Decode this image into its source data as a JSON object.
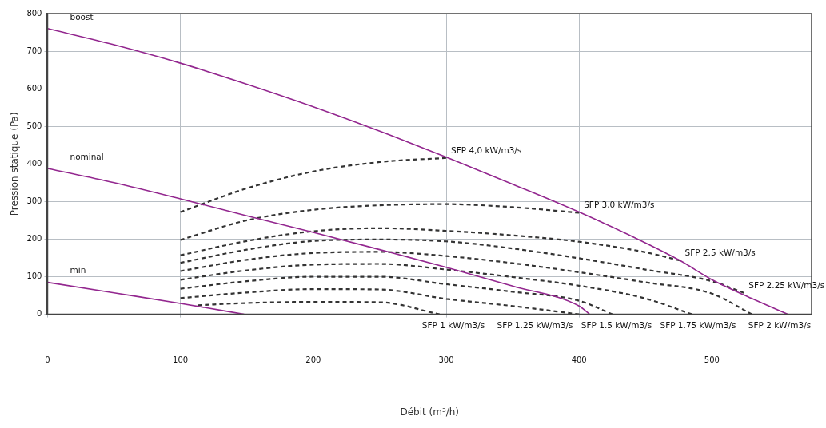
{
  "chart_data": {
    "type": "line",
    "xlabel": "Débit (m³/h)",
    "ylabel": "Pression statique (Pa)",
    "xlim": [
      0,
      575
    ],
    "ylim": [
      0,
      800
    ],
    "xticks": [
      0,
      100,
      200,
      300,
      400,
      500
    ],
    "yticks": [
      0,
      100,
      200,
      300,
      400,
      500,
      600,
      700,
      800
    ],
    "grid": true,
    "legend": false,
    "marker": "none",
    "series": [
      {
        "name": "boost",
        "color": "#93278f",
        "line_style": "solid",
        "x": [
          0,
          50,
          100,
          150,
          200,
          250,
          300,
          350,
          400,
          450,
          476,
          500,
          530,
          557
        ],
        "values": [
          760,
          717,
          668,
          612,
          552,
          487,
          418,
          346,
          272,
          190,
          143,
          92,
          42,
          0
        ]
      },
      {
        "name": "nominal",
        "color": "#93278f",
        "line_style": "solid",
        "x": [
          0,
          50,
          100,
          150,
          200,
          250,
          300,
          350,
          400,
          408
        ],
        "values": [
          388,
          350,
          307,
          262,
          218,
          172,
          125,
          75,
          22,
          0
        ]
      },
      {
        "name": "min",
        "color": "#93278f",
        "line_style": "solid",
        "x": [
          0,
          50,
          100,
          148
        ],
        "values": [
          85,
          57,
          29,
          0
        ]
      },
      {
        "color": "#333333",
        "line_style": "dashed",
        "x": [
          100,
          150,
          200,
          250,
          300
        ],
        "values": [
          272,
          335,
          380,
          405,
          416
        ]
      },
      {
        "color": "#333333",
        "line_style": "dashed",
        "x": [
          100,
          150,
          200,
          250,
          300,
          350,
          400
        ],
        "values": [
          198,
          250,
          278,
          290,
          293,
          285,
          270
        ]
      },
      {
        "color": "#333333",
        "line_style": "dashed",
        "x": [
          100,
          150,
          200,
          250,
          300,
          350,
          400,
          450,
          476
        ],
        "values": [
          157,
          195,
          221,
          229,
          222,
          210,
          193,
          165,
          143
        ]
      },
      {
        "color": "#333333",
        "line_style": "dashed",
        "x": [
          100,
          150,
          200,
          250,
          300,
          350,
          400,
          450,
          500,
          524
        ],
        "values": [
          137,
          172,
          195,
          199,
          194,
          175,
          149,
          119,
          88,
          57
        ]
      },
      {
        "color": "#333333",
        "line_style": "dashed",
        "x": [
          100,
          150,
          200,
          250,
          300,
          350,
          400,
          450,
          500,
          530
        ],
        "values": [
          115,
          145,
          163,
          166,
          155,
          136,
          112,
          85,
          55,
          0
        ]
      },
      {
        "color": "#333333",
        "line_style": "dashed",
        "x": [
          100,
          150,
          200,
          250,
          300,
          350,
          400,
          450,
          485
        ],
        "values": [
          92,
          117,
          132,
          134,
          119,
          99,
          76,
          42,
          0
        ]
      },
      {
        "color": "#333333",
        "line_style": "dashed",
        "x": [
          100,
          150,
          200,
          250,
          300,
          350,
          400,
          425
        ],
        "values": [
          68,
          88,
          100,
          100,
          80,
          60,
          36,
          0
        ]
      },
      {
        "color": "#333333",
        "line_style": "dashed",
        "x": [
          100,
          150,
          200,
          250,
          300,
          350,
          400
        ],
        "values": [
          43,
          58,
          67,
          66,
          41,
          22,
          0
        ]
      },
      {
        "color": "#333333",
        "line_style": "dashed",
        "x": [
          113,
          150,
          200,
          250,
          295
        ],
        "values": [
          24,
          30,
          33,
          32,
          0
        ]
      }
    ],
    "annotations": [
      {
        "text": "SFP 4,0 kW/m3/s",
        "x": 300,
        "y": 416
      },
      {
        "text": "SFP 3,0 kW/m3/s",
        "x": 400,
        "y": 270
      },
      {
        "text": "SFP 2.5 kW/m3/s",
        "x": 476,
        "y": 143
      },
      {
        "text": "SFP 2.25 kW/m3/s",
        "x": 524,
        "y": 57
      },
      "SFP 1 kW/m3/s",
      "SFP 1.25 kW/m3/s",
      "SFP 1.5 kW/m3/s",
      "SFP 1.75 kW/m3/s",
      "SFP 2 kW/m3/s"
    ]
  }
}
